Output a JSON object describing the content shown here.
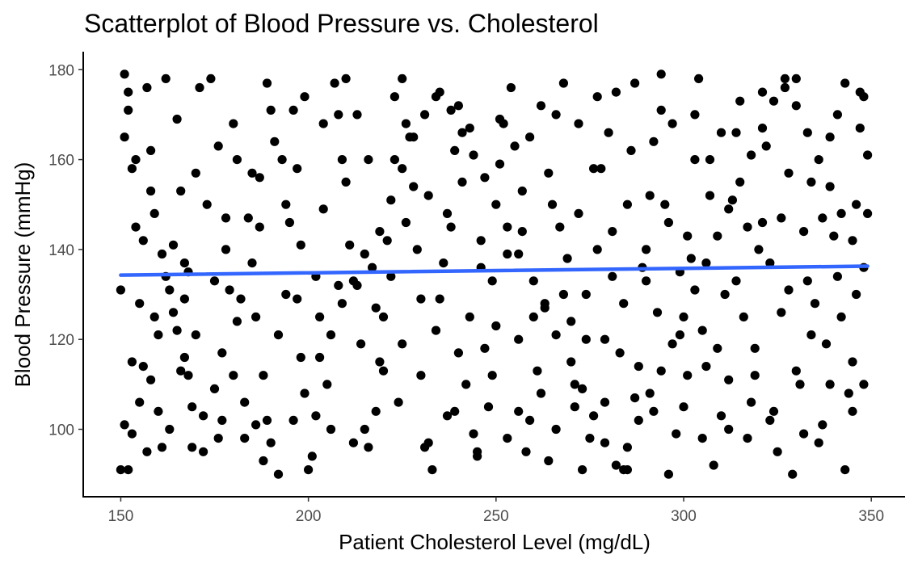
{
  "chart_data": {
    "type": "scatter",
    "title": "Scatterplot of Blood Pressure vs. Cholesterol",
    "xlabel": "Patient Cholesterol Level (mg/dL)",
    "ylabel": "Blood Pressure (mmHg)",
    "xlim": [
      140,
      359
    ],
    "ylim": [
      85,
      184
    ],
    "xticks": [
      150,
      200,
      250,
      300,
      350
    ],
    "yticks": [
      100,
      120,
      140,
      160,
      180
    ],
    "xtick_labels": [
      "150",
      "200",
      "250",
      "300",
      "350"
    ],
    "ytick_labels": [
      "100",
      "120",
      "140",
      "160",
      "180"
    ],
    "grid": false,
    "legend": "none",
    "point_color": "#000000",
    "fit_line": {
      "color": "#3366ff",
      "x": [
        150,
        349
      ],
      "y": [
        134.3,
        136.3
      ]
    },
    "points": [
      [
        151,
        179
      ],
      [
        152,
        171
      ],
      [
        151,
        165
      ],
      [
        153,
        158
      ],
      [
        154,
        145
      ],
      [
        156,
        142
      ],
      [
        158,
        153
      ],
      [
        159,
        148
      ],
      [
        161,
        139
      ],
      [
        162,
        134
      ],
      [
        164,
        126
      ],
      [
        165,
        122
      ],
      [
        167,
        116
      ],
      [
        168,
        112
      ],
      [
        169,
        105
      ],
      [
        172,
        103
      ],
      [
        175,
        109
      ],
      [
        177,
        117
      ],
      [
        180,
        112
      ],
      [
        183,
        106
      ],
      [
        186,
        101
      ],
      [
        188,
        93
      ],
      [
        190,
        97
      ],
      [
        192,
        90
      ],
      [
        196,
        102
      ],
      [
        199,
        108
      ],
      [
        203,
        116
      ],
      [
        206,
        121
      ],
      [
        209,
        128
      ],
      [
        212,
        133
      ],
      [
        215,
        139
      ],
      [
        219,
        144
      ],
      [
        222,
        151
      ],
      [
        225,
        158
      ],
      [
        228,
        165
      ],
      [
        231,
        170
      ],
      [
        235,
        175
      ],
      [
        238,
        171
      ],
      [
        241,
        166
      ],
      [
        244,
        161
      ],
      [
        247,
        156
      ],
      [
        250,
        150
      ],
      [
        253,
        145
      ],
      [
        256,
        139
      ],
      [
        260,
        133
      ],
      [
        263,
        127
      ],
      [
        266,
        121
      ],
      [
        270,
        115
      ],
      [
        273,
        109
      ],
      [
        276,
        103
      ],
      [
        279,
        97
      ],
      [
        282,
        92
      ],
      [
        285,
        96
      ],
      [
        288,
        102
      ],
      [
        291,
        108
      ],
      [
        294,
        113
      ],
      [
        297,
        119
      ],
      [
        300,
        125
      ],
      [
        303,
        131
      ],
      [
        306,
        137
      ],
      [
        309,
        143
      ],
      [
        312,
        149
      ],
      [
        315,
        155
      ],
      [
        318,
        161
      ],
      [
        321,
        167
      ],
      [
        324,
        173
      ],
      [
        327,
        178
      ],
      [
        330,
        172
      ],
      [
        333,
        166
      ],
      [
        336,
        160
      ],
      [
        339,
        154
      ],
      [
        342,
        148
      ],
      [
        345,
        142
      ],
      [
        348,
        136
      ],
      [
        150,
        131
      ],
      [
        151,
        101
      ],
      [
        152,
        91
      ],
      [
        153,
        99
      ],
      [
        155,
        128
      ],
      [
        156,
        114
      ],
      [
        157,
        95
      ],
      [
        158,
        111
      ],
      [
        160,
        104
      ],
      [
        161,
        96
      ],
      [
        163,
        100
      ],
      [
        166,
        113
      ],
      [
        168,
        135
      ],
      [
        170,
        157
      ],
      [
        171,
        176
      ],
      [
        174,
        178
      ],
      [
        176,
        163
      ],
      [
        178,
        147
      ],
      [
        179,
        131
      ],
      [
        181,
        124
      ],
      [
        183,
        98
      ],
      [
        185,
        137
      ],
      [
        187,
        156
      ],
      [
        189,
        177
      ],
      [
        190,
        171
      ],
      [
        193,
        160
      ],
      [
        195,
        146
      ],
      [
        197,
        129
      ],
      [
        198,
        116
      ],
      [
        200,
        91
      ],
      [
        202,
        103
      ],
      [
        204,
        149
      ],
      [
        207,
        177
      ],
      [
        208,
        170
      ],
      [
        210,
        155
      ],
      [
        213,
        132
      ],
      [
        214,
        119
      ],
      [
        216,
        96
      ],
      [
        218,
        104
      ],
      [
        220,
        125
      ],
      [
        221,
        142
      ],
      [
        223,
        160
      ],
      [
        225,
        178
      ],
      [
        226,
        168
      ],
      [
        228,
        154
      ],
      [
        230,
        112
      ],
      [
        232,
        97
      ],
      [
        233,
        91
      ],
      [
        235,
        129
      ],
      [
        237,
        148
      ],
      [
        239,
        162
      ],
      [
        240,
        172
      ],
      [
        242,
        110
      ],
      [
        244,
        99
      ],
      [
        245,
        95
      ],
      [
        247,
        118
      ],
      [
        249,
        133
      ],
      [
        251,
        159
      ],
      [
        252,
        168
      ],
      [
        254,
        176
      ],
      [
        256,
        120
      ],
      [
        258,
        95
      ],
      [
        259,
        102
      ],
      [
        261,
        113
      ],
      [
        263,
        128
      ],
      [
        265,
        150
      ],
      [
        266,
        170
      ],
      [
        268,
        177
      ],
      [
        270,
        124
      ],
      [
        271,
        105
      ],
      [
        273,
        91
      ],
      [
        275,
        98
      ],
      [
        277,
        140
      ],
      [
        278,
        158
      ],
      [
        280,
        166
      ],
      [
        282,
        175
      ],
      [
        283,
        117
      ],
      [
        285,
        91
      ],
      [
        287,
        107
      ],
      [
        289,
        136
      ],
      [
        291,
        152
      ],
      [
        292,
        164
      ],
      [
        294,
        179
      ],
      [
        296,
        90
      ],
      [
        298,
        99
      ],
      [
        299,
        121
      ],
      [
        301,
        143
      ],
      [
        303,
        160
      ],
      [
        304,
        178
      ],
      [
        306,
        114
      ],
      [
        308,
        92
      ],
      [
        310,
        103
      ],
      [
        311,
        130
      ],
      [
        313,
        151
      ],
      [
        315,
        173
      ],
      [
        317,
        98
      ],
      [
        319,
        118
      ],
      [
        320,
        140
      ],
      [
        322,
        163
      ],
      [
        324,
        104
      ],
      [
        326,
        126
      ],
      [
        327,
        176
      ],
      [
        329,
        90
      ],
      [
        331,
        110
      ],
      [
        333,
        133
      ],
      [
        334,
        155
      ],
      [
        336,
        97
      ],
      [
        338,
        119
      ],
      [
        340,
        143
      ],
      [
        341,
        170
      ],
      [
        343,
        91
      ],
      [
        345,
        115
      ],
      [
        346,
        150
      ],
      [
        347,
        167
      ],
      [
        348,
        174
      ],
      [
        349,
        161
      ],
      [
        152,
        175
      ],
      [
        154,
        160
      ],
      [
        157,
        176
      ],
      [
        159,
        125
      ],
      [
        162,
        178
      ],
      [
        164,
        141
      ],
      [
        166,
        153
      ],
      [
        167,
        129
      ],
      [
        169,
        96
      ],
      [
        173,
        150
      ],
      [
        176,
        98
      ],
      [
        178,
        140
      ],
      [
        181,
        160
      ],
      [
        184,
        147
      ],
      [
        186,
        125
      ],
      [
        188,
        112
      ],
      [
        191,
        164
      ],
      [
        194,
        130
      ],
      [
        196,
        171
      ],
      [
        198,
        141
      ],
      [
        201,
        94
      ],
      [
        203,
        125
      ],
      [
        205,
        110
      ],
      [
        208,
        132
      ],
      [
        210,
        178
      ],
      [
        212,
        97
      ],
      [
        215,
        100
      ],
      [
        217,
        136
      ],
      [
        219,
        115
      ],
      [
        222,
        134
      ],
      [
        224,
        106
      ],
      [
        226,
        146
      ],
      [
        229,
        140
      ],
      [
        231,
        96
      ],
      [
        234,
        122
      ],
      [
        236,
        137
      ],
      [
        239,
        104
      ],
      [
        241,
        155
      ],
      [
        243,
        125
      ],
      [
        246,
        136
      ],
      [
        248,
        105
      ],
      [
        250,
        123
      ],
      [
        253,
        98
      ],
      [
        255,
        163
      ],
      [
        257,
        144
      ],
      [
        260,
        125
      ],
      [
        262,
        108
      ],
      [
        264,
        93
      ],
      [
        267,
        145
      ],
      [
        269,
        138
      ],
      [
        272,
        148
      ],
      [
        274,
        130
      ],
      [
        276,
        158
      ],
      [
        279,
        120
      ],
      [
        281,
        144
      ],
      [
        284,
        128
      ],
      [
        286,
        162
      ],
      [
        288,
        114
      ],
      [
        290,
        140
      ],
      [
        293,
        126
      ],
      [
        295,
        150
      ],
      [
        297,
        168
      ],
      [
        300,
        105
      ],
      [
        302,
        138
      ],
      [
        305,
        122
      ],
      [
        307,
        160
      ],
      [
        309,
        118
      ],
      [
        312,
        111
      ],
      [
        314,
        166
      ],
      [
        316,
        125
      ],
      [
        318,
        106
      ],
      [
        321,
        146
      ],
      [
        323,
        137
      ],
      [
        325,
        95
      ],
      [
        328,
        157
      ],
      [
        330,
        113
      ],
      [
        332,
        144
      ],
      [
        335,
        128
      ],
      [
        337,
        101
      ],
      [
        339,
        165
      ],
      [
        342,
        125
      ],
      [
        344,
        108
      ],
      [
        346,
        130
      ],
      [
        348,
        110
      ],
      [
        150,
        91
      ],
      [
        153,
        115
      ],
      [
        155,
        106
      ],
      [
        158,
        162
      ],
      [
        160,
        121
      ],
      [
        163,
        131
      ],
      [
        165,
        169
      ],
      [
        167,
        137
      ],
      [
        170,
        121
      ],
      [
        172,
        95
      ],
      [
        175,
        133
      ],
      [
        177,
        102
      ],
      [
        180,
        168
      ],
      [
        182,
        129
      ],
      [
        185,
        157
      ],
      [
        187,
        145
      ],
      [
        189,
        102
      ],
      [
        192,
        121
      ],
      [
        194,
        150
      ],
      [
        197,
        158
      ],
      [
        199,
        174
      ],
      [
        202,
        134
      ],
      [
        204,
        168
      ],
      [
        206,
        100
      ],
      [
        209,
        160
      ],
      [
        211,
        141
      ],
      [
        213,
        170
      ],
      [
        216,
        160
      ],
      [
        218,
        127
      ],
      [
        220,
        113
      ],
      [
        223,
        174
      ],
      [
        225,
        119
      ],
      [
        227,
        165
      ],
      [
        230,
        129
      ],
      [
        232,
        152
      ],
      [
        234,
        174
      ],
      [
        237,
        103
      ],
      [
        238,
        145
      ],
      [
        240,
        117
      ],
      [
        243,
        167
      ],
      [
        245,
        94
      ],
      [
        246,
        142
      ],
      [
        249,
        112
      ],
      [
        251,
        169
      ],
      [
        253,
        139
      ],
      [
        256,
        104
      ],
      [
        257,
        153
      ],
      [
        259,
        165
      ],
      [
        262,
        172
      ],
      [
        264,
        157
      ],
      [
        266,
        100
      ],
      [
        268,
        130
      ],
      [
        271,
        110
      ],
      [
        272,
        168
      ],
      [
        274,
        120
      ],
      [
        277,
        174
      ],
      [
        279,
        106
      ],
      [
        281,
        134
      ],
      [
        284,
        91
      ],
      [
        285,
        150
      ],
      [
        287,
        177
      ],
      [
        290,
        133
      ],
      [
        292,
        104
      ],
      [
        294,
        171
      ],
      [
        296,
        146
      ],
      [
        299,
        135
      ],
      [
        301,
        112
      ],
      [
        303,
        170
      ],
      [
        305,
        98
      ],
      [
        307,
        152
      ],
      [
        310,
        166
      ],
      [
        312,
        100
      ],
      [
        314,
        133
      ],
      [
        317,
        145
      ],
      [
        319,
        112
      ],
      [
        321,
        175
      ],
      [
        323,
        102
      ],
      [
        326,
        147
      ],
      [
        328,
        131
      ],
      [
        330,
        178
      ],
      [
        332,
        99
      ],
      [
        334,
        121
      ],
      [
        337,
        147
      ],
      [
        339,
        110
      ],
      [
        341,
        134
      ],
      [
        343,
        177
      ],
      [
        345,
        104
      ],
      [
        347,
        175
      ],
      [
        349,
        148
      ]
    ]
  }
}
